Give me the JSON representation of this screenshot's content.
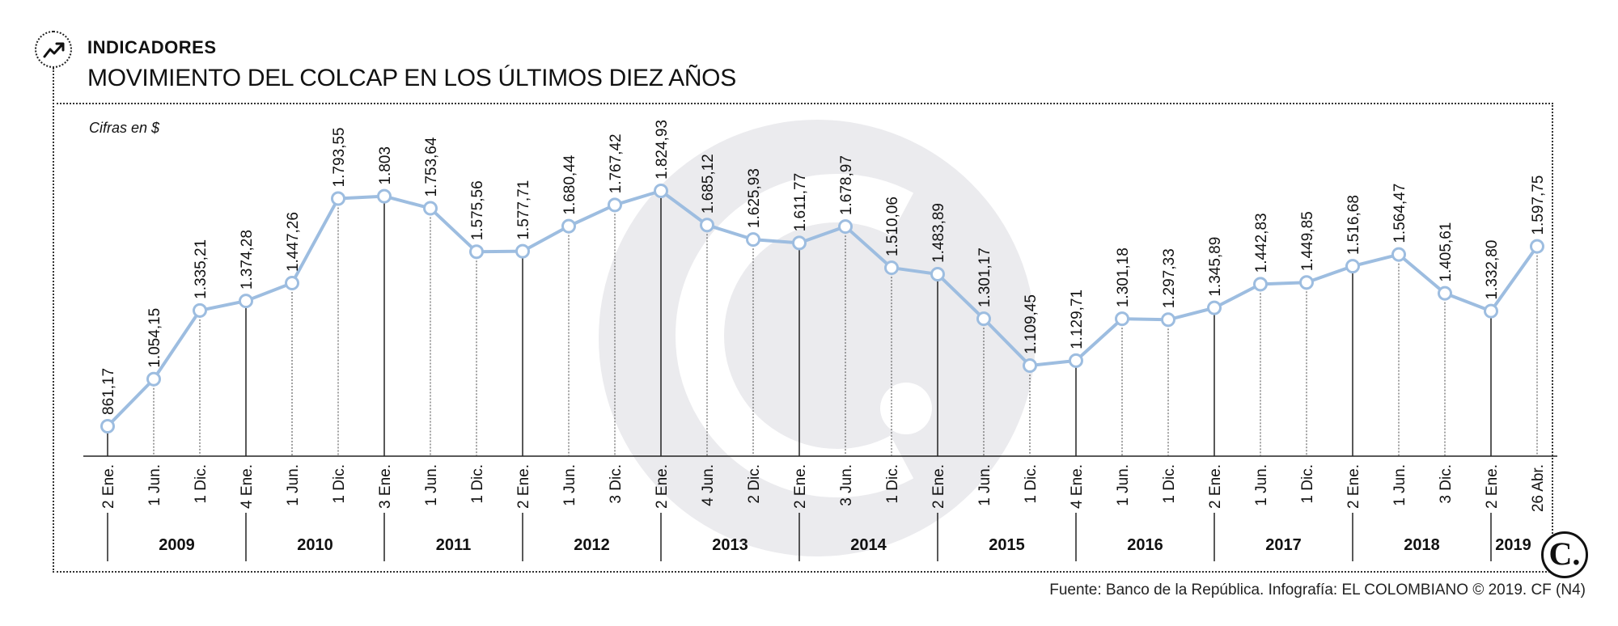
{
  "header": {
    "icon": "trend-line-icon",
    "kicker": "INDICADORES",
    "title": "MOVIMIENTO DEL COLCAP EN LOS ÚLTIMOS DIEZ AÑOS"
  },
  "unit_note": "Cifras en $",
  "source": "Fuente: Banco de la República. Infografía: EL COLOMBIANO © 2019. CF (N4)",
  "logo_text": "C.",
  "colors": {
    "line": "#9dbde0",
    "axis": "#222222",
    "watermark": "#ebebee"
  },
  "chart_data": {
    "type": "line",
    "x": [
      "2 Ene.",
      "1 Jun.",
      "1 Dic.",
      "4 Ene.",
      "1 Jun.",
      "1 Dic.",
      "3 Ene.",
      "1 Jun.",
      "1 Dic.",
      "2 Ene.",
      "1 Jun.",
      "3 Dic.",
      "2 Ene.",
      "4 Jun.",
      "2 Dic.",
      "2 Ene.",
      "3 Jun.",
      "1 Dic.",
      "2 Ene.",
      "1 Jun.",
      "1 Dic.",
      "4 Ene.",
      "1 Jun.",
      "1 Dic.",
      "2 Ene.",
      "1 Jun.",
      "1 Dic.",
      "2 Ene.",
      "1 Jun.",
      "3 Dic.",
      "2 Ene.",
      "26 Abr."
    ],
    "values": [
      861.17,
      1054.15,
      1335.21,
      1374.28,
      1447.26,
      1793.55,
      1803,
      1753.64,
      1575.56,
      1577.71,
      1680.44,
      1767.42,
      1824.93,
      1685.12,
      1625.93,
      1611.77,
      1678.97,
      1510.06,
      1483.89,
      1301.17,
      1109.45,
      1129.71,
      1301.18,
      1297.33,
      1345.89,
      1442.83,
      1449.85,
      1516.68,
      1564.47,
      1405.61,
      1332.8,
      1597.75
    ],
    "labels": [
      "861,17",
      "1.054,15",
      "1.335,21",
      "1.374,28",
      "1.447,26",
      "1.793,55",
      "1.803",
      "1.753,64",
      "1.575,56",
      "1.577,71",
      "1.680,44",
      "1.767,42",
      "1.824,93",
      "1.685,12",
      "1.625,93",
      "1.611,77",
      "1.678,97",
      "1.510,06",
      "1.483,89",
      "1.301,17",
      "1.109,45",
      "1.129,71",
      "1.301,18",
      "1.297,33",
      "1.345,89",
      "1.442,83",
      "1.449,85",
      "1.516,68",
      "1.564,47",
      "1.405,61",
      "1.332,80",
      "1.597,75"
    ],
    "years": [
      "2009",
      "2010",
      "2011",
      "2012",
      "2013",
      "2014",
      "2015",
      "2016",
      "2017",
      "2018",
      "2019"
    ],
    "year_starts": [
      0,
      3,
      6,
      9,
      12,
      15,
      18,
      21,
      24,
      27,
      30
    ],
    "xlabel": "",
    "ylabel": "",
    "grid": false,
    "legend": "none"
  }
}
